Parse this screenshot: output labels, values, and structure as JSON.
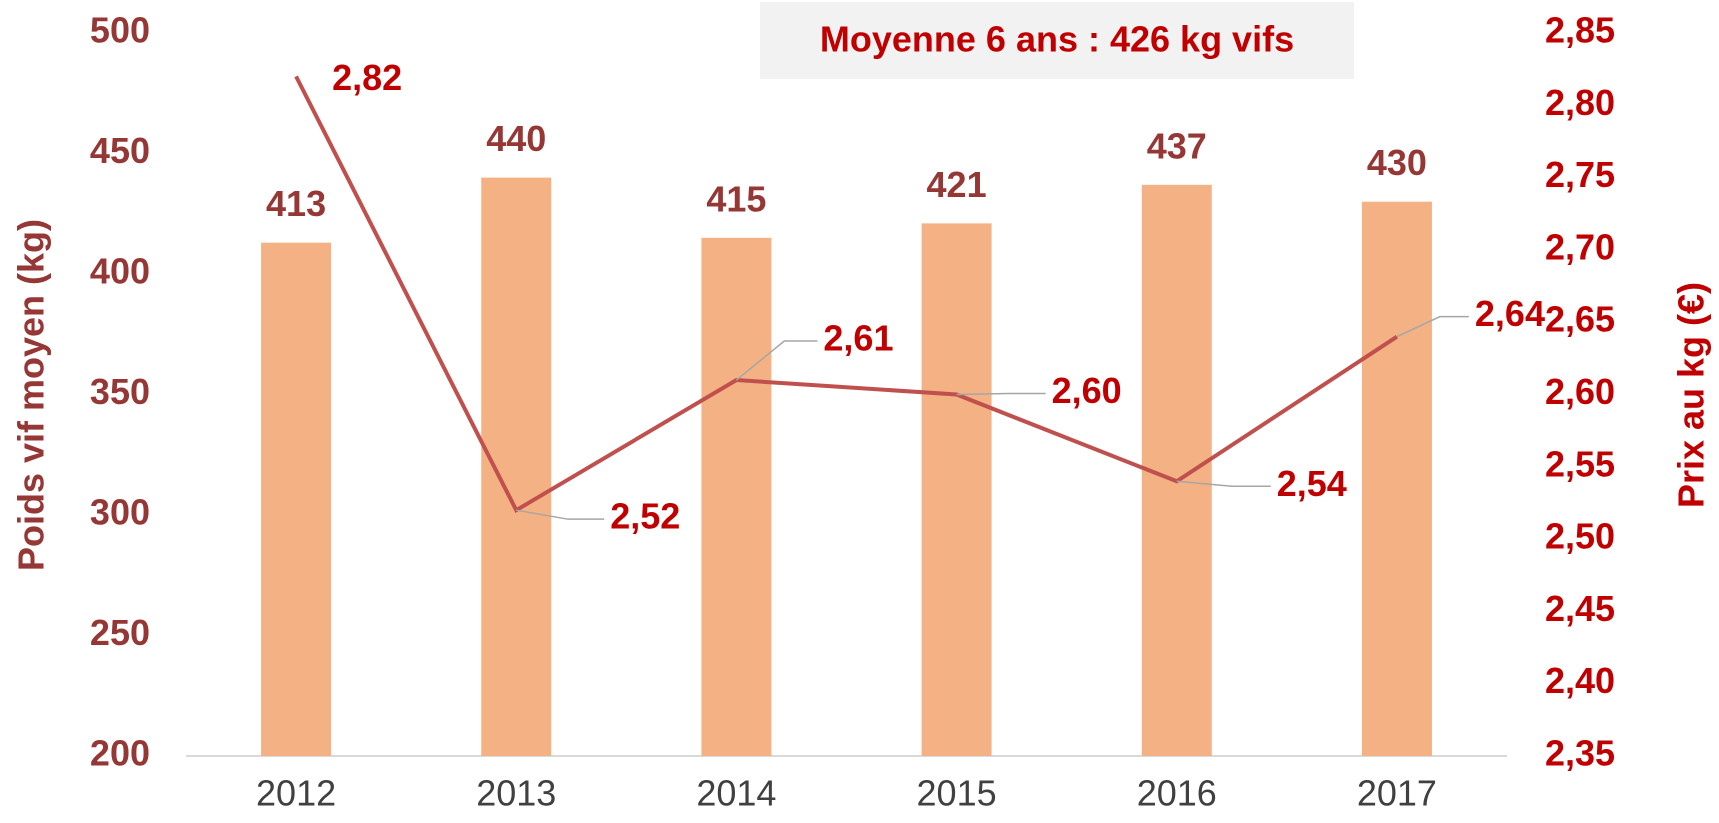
{
  "chart_data": {
    "type": "bar_line",
    "annotation": "Moyenne 6 ans : 426 kg vifs",
    "categories": [
      "2012",
      "2013",
      "2014",
      "2015",
      "2016",
      "2017"
    ],
    "series": [
      {
        "name": "Poids vif moyen",
        "type": "bar",
        "color": "#f4b183",
        "values": [
          413,
          440,
          415,
          421,
          437,
          430
        ]
      },
      {
        "name": "Prix au kg",
        "type": "line",
        "axis": "y2",
        "color": "#c0504d",
        "values": [
          2.82,
          2.52,
          2.61,
          2.6,
          2.54,
          2.64
        ],
        "value_labels": [
          "2,82",
          "2,52",
          "2,61",
          "2,60",
          "2,54",
          "2,64"
        ]
      }
    ],
    "ylabel": "Poids vif moyen (kg)",
    "y2label": "Prix au kg (€)",
    "ylim": [
      200,
      500
    ],
    "yticks": [
      200,
      250,
      300,
      350,
      400,
      450,
      500
    ],
    "y2lim": [
      2.35,
      2.85
    ],
    "y2ticks": [
      {
        "value": 2.35,
        "label": "2,35"
      },
      {
        "value": 2.4,
        "label": "2,40"
      },
      {
        "value": 2.45,
        "label": "2,45"
      },
      {
        "value": 2.5,
        "label": "2,50"
      },
      {
        "value": 2.55,
        "label": "2,55"
      },
      {
        "value": 2.6,
        "label": "2,60"
      },
      {
        "value": 2.65,
        "label": "2,65"
      },
      {
        "value": 2.7,
        "label": "2,70"
      },
      {
        "value": 2.75,
        "label": "2,75"
      },
      {
        "value": 2.8,
        "label": "2,80"
      },
      {
        "value": 2.85,
        "label": "2,85"
      }
    ]
  }
}
